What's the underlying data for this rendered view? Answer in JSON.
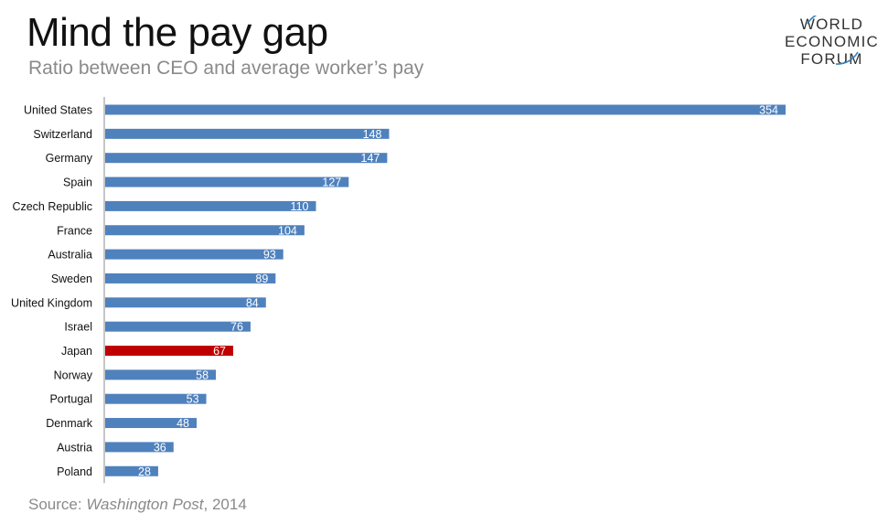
{
  "header": {
    "title": "Mind the pay gap",
    "subtitle": "Ratio between CEO and average worker’s pay"
  },
  "logo": {
    "line1": "WORLD",
    "line2": "ECONOMIC",
    "line3": "FORUM"
  },
  "footer": {
    "source_prefix": "Source: ",
    "source_name": "Washington Post",
    "source_suffix": ", 2014"
  },
  "colors": {
    "bar": "#4f81bd",
    "highlight": "#c00000",
    "axis": "#8c8c8c",
    "value_label": "#ffffff",
    "category_label": "#111111"
  },
  "chart_data": {
    "type": "bar",
    "orientation": "horizontal",
    "title": "Mind the pay gap",
    "subtitle": "Ratio between CEO and average worker’s pay",
    "xlabel": "",
    "ylabel": "",
    "xlim": [
      0,
      354
    ],
    "grid": false,
    "categories": [
      "United States",
      "Switzerland",
      "Germany",
      "Spain",
      "Czech Republic",
      "France",
      "Australia",
      "Sweden",
      "United Kingdom",
      "Israel",
      "Japan",
      "Norway",
      "Portugal",
      "Denmark",
      "Austria",
      "Poland"
    ],
    "values": [
      354,
      148,
      147,
      127,
      110,
      104,
      93,
      89,
      84,
      76,
      67,
      58,
      53,
      48,
      36,
      28
    ],
    "highlighted": [
      "Japan"
    ]
  }
}
